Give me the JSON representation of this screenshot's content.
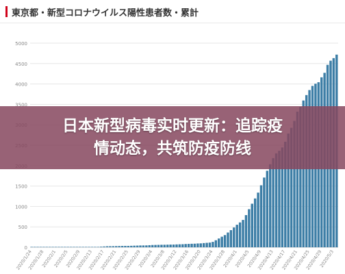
{
  "colors": {
    "bar": "#3d7ea6",
    "grid": "#e6e6e6",
    "axis_text": "#888888",
    "banner_bg": "#87485f",
    "banner_text": "#ffffff",
    "title_accent": "#d0021b"
  },
  "chart_title": "東京都・新型コロナウイルス陽性患者数・累計",
  "banner": {
    "line1": "日本新型病毒实时更新：追踪疫",
    "line2": "情动态，共筑防疫防线"
  },
  "chart_data": {
    "type": "bar",
    "title": "東京都・新型コロナウイルス陽性患者数・累計",
    "xlabel": "",
    "ylabel": "",
    "ylim": [
      0,
      5000
    ],
    "yticks": [
      0,
      500,
      1000,
      1500,
      2000,
      2500,
      3000,
      3500,
      4000,
      4500,
      5000
    ],
    "grid": true,
    "legend": "none",
    "xtick_labels": [
      "2020/1/24",
      "2020/1/28",
      "2020/2/1",
      "2020/2/5",
      "2020/2/9",
      "2020/2/13",
      "2020/2/17",
      "2020/2/21",
      "2020/2/25",
      "2020/2/29",
      "2020/3/4",
      "2020/3/8",
      "2020/3/12",
      "2020/3/16",
      "2020/3/20",
      "2020/3/24",
      "2020/3/28",
      "2020/4/1",
      "2020/4/5",
      "2020/4/9",
      "2020/4/13",
      "2020/4/17",
      "2020/4/21",
      "2020/4/25",
      "2020/4/29",
      "2020/5/3"
    ],
    "categories": [
      "2020/1/24",
      "2020/1/25",
      "2020/1/26",
      "2020/1/27",
      "2020/1/28",
      "2020/1/29",
      "2020/1/30",
      "2020/1/31",
      "2020/2/1",
      "2020/2/2",
      "2020/2/3",
      "2020/2/4",
      "2020/2/5",
      "2020/2/6",
      "2020/2/7",
      "2020/2/8",
      "2020/2/9",
      "2020/2/10",
      "2020/2/11",
      "2020/2/12",
      "2020/2/13",
      "2020/2/14",
      "2020/2/15",
      "2020/2/16",
      "2020/2/17",
      "2020/2/18",
      "2020/2/19",
      "2020/2/20",
      "2020/2/21",
      "2020/2/22",
      "2020/2/23",
      "2020/2/24",
      "2020/2/25",
      "2020/2/26",
      "2020/2/27",
      "2020/2/28",
      "2020/2/29",
      "2020/3/1",
      "2020/3/2",
      "2020/3/3",
      "2020/3/4",
      "2020/3/5",
      "2020/3/6",
      "2020/3/7",
      "2020/3/8",
      "2020/3/9",
      "2020/3/10",
      "2020/3/11",
      "2020/3/12",
      "2020/3/13",
      "2020/3/14",
      "2020/3/15",
      "2020/3/16",
      "2020/3/17",
      "2020/3/18",
      "2020/3/19",
      "2020/3/20",
      "2020/3/21",
      "2020/3/22",
      "2020/3/23",
      "2020/3/24",
      "2020/3/25",
      "2020/3/26",
      "2020/3/27",
      "2020/3/28",
      "2020/3/29",
      "2020/3/30",
      "2020/3/31",
      "2020/4/1",
      "2020/4/2",
      "2020/4/3",
      "2020/4/4",
      "2020/4/5",
      "2020/4/6",
      "2020/4/7",
      "2020/4/8",
      "2020/4/9",
      "2020/4/10",
      "2020/4/11",
      "2020/4/12",
      "2020/4/13",
      "2020/4/14",
      "2020/4/15",
      "2020/4/16",
      "2020/4/17",
      "2020/4/18",
      "2020/4/19",
      "2020/4/20",
      "2020/4/21",
      "2020/4/22",
      "2020/4/23",
      "2020/4/24",
      "2020/4/25",
      "2020/4/26",
      "2020/4/27",
      "2020/4/28",
      "2020/4/29",
      "2020/4/30",
      "2020/5/1",
      "2020/5/2",
      "2020/5/3",
      "2020/5/4"
    ],
    "values": [
      1,
      1,
      1,
      1,
      2,
      2,
      3,
      3,
      3,
      3,
      3,
      3,
      3,
      3,
      3,
      3,
      3,
      3,
      3,
      5,
      6,
      7,
      10,
      15,
      20,
      25,
      26,
      27,
      29,
      31,
      33,
      34,
      34,
      36,
      39,
      41,
      44,
      45,
      46,
      51,
      55,
      57,
      59,
      61,
      62,
      64,
      66,
      67,
      70,
      73,
      75,
      80,
      83,
      86,
      88,
      93,
      96,
      103,
      109,
      115,
      132,
      172,
      215,
      259,
      299,
      361,
      420,
      485,
      552,
      609,
      670,
      788,
      933,
      1067,
      1196,
      1339,
      1519,
      1708,
      1874,
      2034,
      2184,
      2300,
      2364,
      2445,
      2585,
      2786,
      2927,
      3095,
      3322,
      3439,
      3596,
      3728,
      3851,
      3953,
      4006,
      4043,
      4163,
      4273,
      4469,
      4570,
      4633,
      4719
    ]
  }
}
